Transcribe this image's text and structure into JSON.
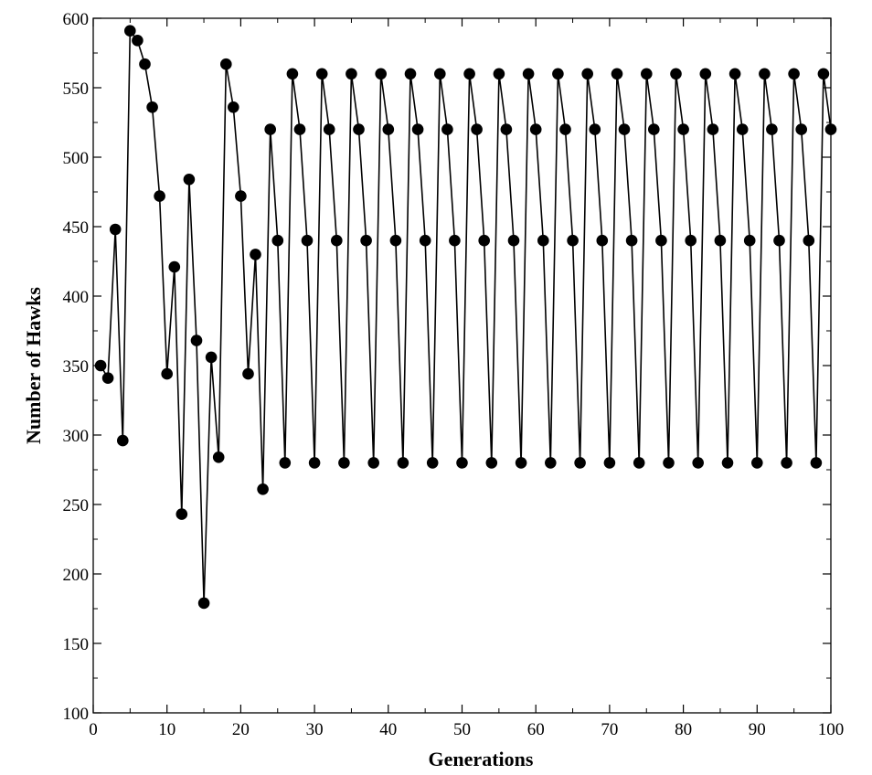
{
  "chart_data": {
    "type": "line",
    "title": "",
    "xlabel": "Generations",
    "ylabel": "Number of Hawks",
    "xlim": [
      0,
      100
    ],
    "ylim": [
      100,
      600
    ],
    "xticks": [
      0,
      10,
      20,
      30,
      40,
      50,
      60,
      70,
      80,
      90,
      100
    ],
    "yticks": [
      100,
      150,
      200,
      250,
      300,
      350,
      400,
      450,
      500,
      550,
      600
    ],
    "grid": false,
    "legend": "none",
    "markers": "filled-circle",
    "color": "#000000",
    "series": [
      {
        "x": [
          1,
          2,
          3,
          4,
          5,
          6,
          7,
          8,
          9,
          10,
          11,
          12,
          13,
          14,
          15,
          16,
          17,
          18,
          19,
          20,
          21,
          22,
          23,
          24,
          25,
          26,
          27,
          28,
          29,
          30,
          31,
          32,
          33,
          34,
          35,
          36,
          37,
          38,
          39,
          40,
          41,
          42,
          43,
          44,
          45,
          46,
          47,
          48,
          49,
          50,
          51,
          52,
          53,
          54,
          55,
          56,
          57,
          58,
          59,
          60,
          61,
          62,
          63,
          64,
          65,
          66,
          67,
          68,
          69,
          70,
          71,
          72,
          73,
          74,
          75,
          76,
          77,
          78,
          79,
          80,
          81,
          82,
          83,
          84,
          85,
          86,
          87,
          88,
          89,
          90,
          91,
          92,
          93,
          94,
          95,
          96,
          97,
          98,
          99,
          100
        ],
        "values": [
          350,
          341,
          448,
          296,
          591,
          584,
          567,
          536,
          472,
          344,
          421,
          243,
          484,
          368,
          179,
          356,
          284,
          567,
          536,
          472,
          344,
          430,
          261,
          520,
          440,
          280,
          560,
          520,
          440,
          280,
          560,
          520,
          440,
          280,
          560,
          520,
          440,
          280,
          560,
          520,
          440,
          280,
          560,
          520,
          440,
          280,
          560,
          520,
          440,
          280,
          560,
          520,
          440,
          280,
          560,
          520,
          440,
          280,
          560,
          520,
          440,
          280,
          560,
          520,
          440,
          280,
          560,
          520,
          440,
          280,
          560,
          520,
          440,
          280,
          560,
          520,
          440,
          280,
          560,
          520,
          440,
          280,
          560,
          520,
          440,
          280,
          560,
          520,
          440,
          280,
          560,
          520,
          440,
          280,
          560,
          520,
          440,
          280,
          560,
          520
        ]
      }
    ]
  }
}
